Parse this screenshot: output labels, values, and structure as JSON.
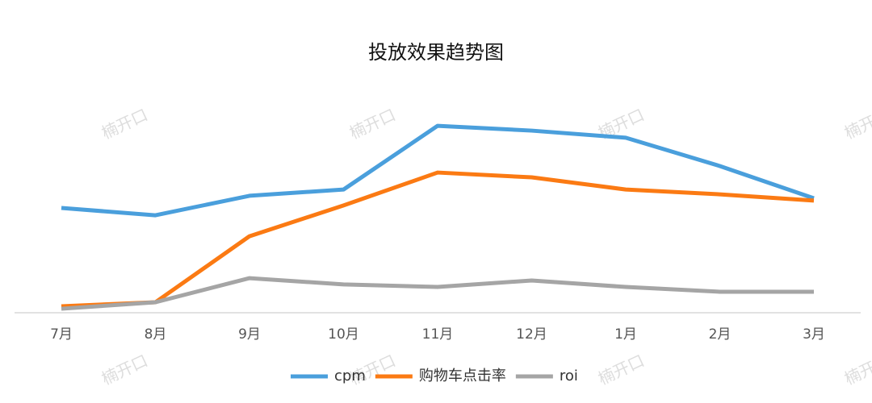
{
  "chart_data": {
    "type": "line",
    "title": "投放效果趋势图",
    "watermark": "楠开口",
    "categories": [
      "7月",
      "8月",
      "9月",
      "10月",
      "11月",
      "12月",
      "1月",
      "2月",
      "3月"
    ],
    "series": [
      {
        "name": "cpm",
        "color": "#4a9fdc",
        "values": [
          50,
          46.5,
          55.8,
          58.8,
          89.2,
          86.9,
          83.5,
          70,
          54.6
        ]
      },
      {
        "name": "购物车点击率",
        "color": "#fb7a13",
        "values": [
          3.1,
          5,
          36.5,
          51.2,
          66.9,
          64.6,
          58.8,
          56.5,
          53.5
        ]
      },
      {
        "name": "roi",
        "color": "#a5a5a5",
        "values": [
          1.9,
          5,
          16.5,
          13.5,
          12.3,
          15.4,
          12.3,
          10,
          10
        ]
      }
    ],
    "ylim": [
      0,
      100
    ],
    "legend": "bottom"
  }
}
